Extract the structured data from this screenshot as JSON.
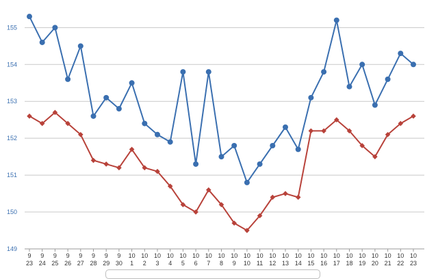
{
  "chart_data": {
    "type": "line",
    "categories": [
      [
        "9",
        "23"
      ],
      [
        "9",
        "24"
      ],
      [
        "9",
        "25"
      ],
      [
        "9",
        "26"
      ],
      [
        "9",
        "27"
      ],
      [
        "9",
        "28"
      ],
      [
        "9",
        "29"
      ],
      [
        "9",
        "30"
      ],
      [
        "10",
        "1"
      ],
      [
        "10",
        "2"
      ],
      [
        "10",
        "3"
      ],
      [
        "10",
        "4"
      ],
      [
        "10",
        "5"
      ],
      [
        "10",
        "6"
      ],
      [
        "10",
        "7"
      ],
      [
        "10",
        "8"
      ],
      [
        "10",
        "9"
      ],
      [
        "10",
        "10"
      ],
      [
        "10",
        "11"
      ],
      [
        "10",
        "12"
      ],
      [
        "10",
        "13"
      ],
      [
        "10",
        "14"
      ],
      [
        "10",
        "15"
      ],
      [
        "10",
        "16"
      ],
      [
        "10",
        "17"
      ],
      [
        "10",
        "18"
      ],
      [
        "10",
        "19"
      ],
      [
        "10",
        "20"
      ],
      [
        "10",
        "21"
      ],
      [
        "10",
        "22"
      ],
      [
        "10",
        "23"
      ]
    ],
    "series": [
      {
        "color": "#3a6fb0",
        "marker": "circle",
        "values": [
          155.3,
          154.6,
          155.0,
          153.6,
          154.5,
          152.6,
          153.1,
          152.8,
          153.5,
          152.4,
          152.1,
          151.9,
          153.8,
          151.3,
          153.8,
          151.5,
          151.8,
          150.8,
          151.3,
          151.8,
          152.3,
          151.7,
          153.1,
          153.8,
          155.2,
          153.4,
          154.0,
          152.9,
          153.6,
          154.3,
          154.0
        ]
      },
      {
        "color": "#b8423a",
        "marker": "diamond",
        "values": [
          152.6,
          152.4,
          152.7,
          152.4,
          152.1,
          151.4,
          151.3,
          151.2,
          151.7,
          151.2,
          151.1,
          150.7,
          150.2,
          150.0,
          150.6,
          150.2,
          149.7,
          149.5,
          149.9,
          150.4,
          150.5,
          150.4,
          152.2,
          152.2,
          152.5,
          152.2,
          151.8,
          151.5,
          152.1,
          152.4,
          152.6
        ]
      }
    ],
    "yticks": [
      149,
      150,
      151,
      152,
      153,
      154,
      155
    ],
    "ylim": [
      149,
      155.6
    ],
    "grid": true,
    "title": "",
    "xlabel": "",
    "ylabel": ""
  }
}
